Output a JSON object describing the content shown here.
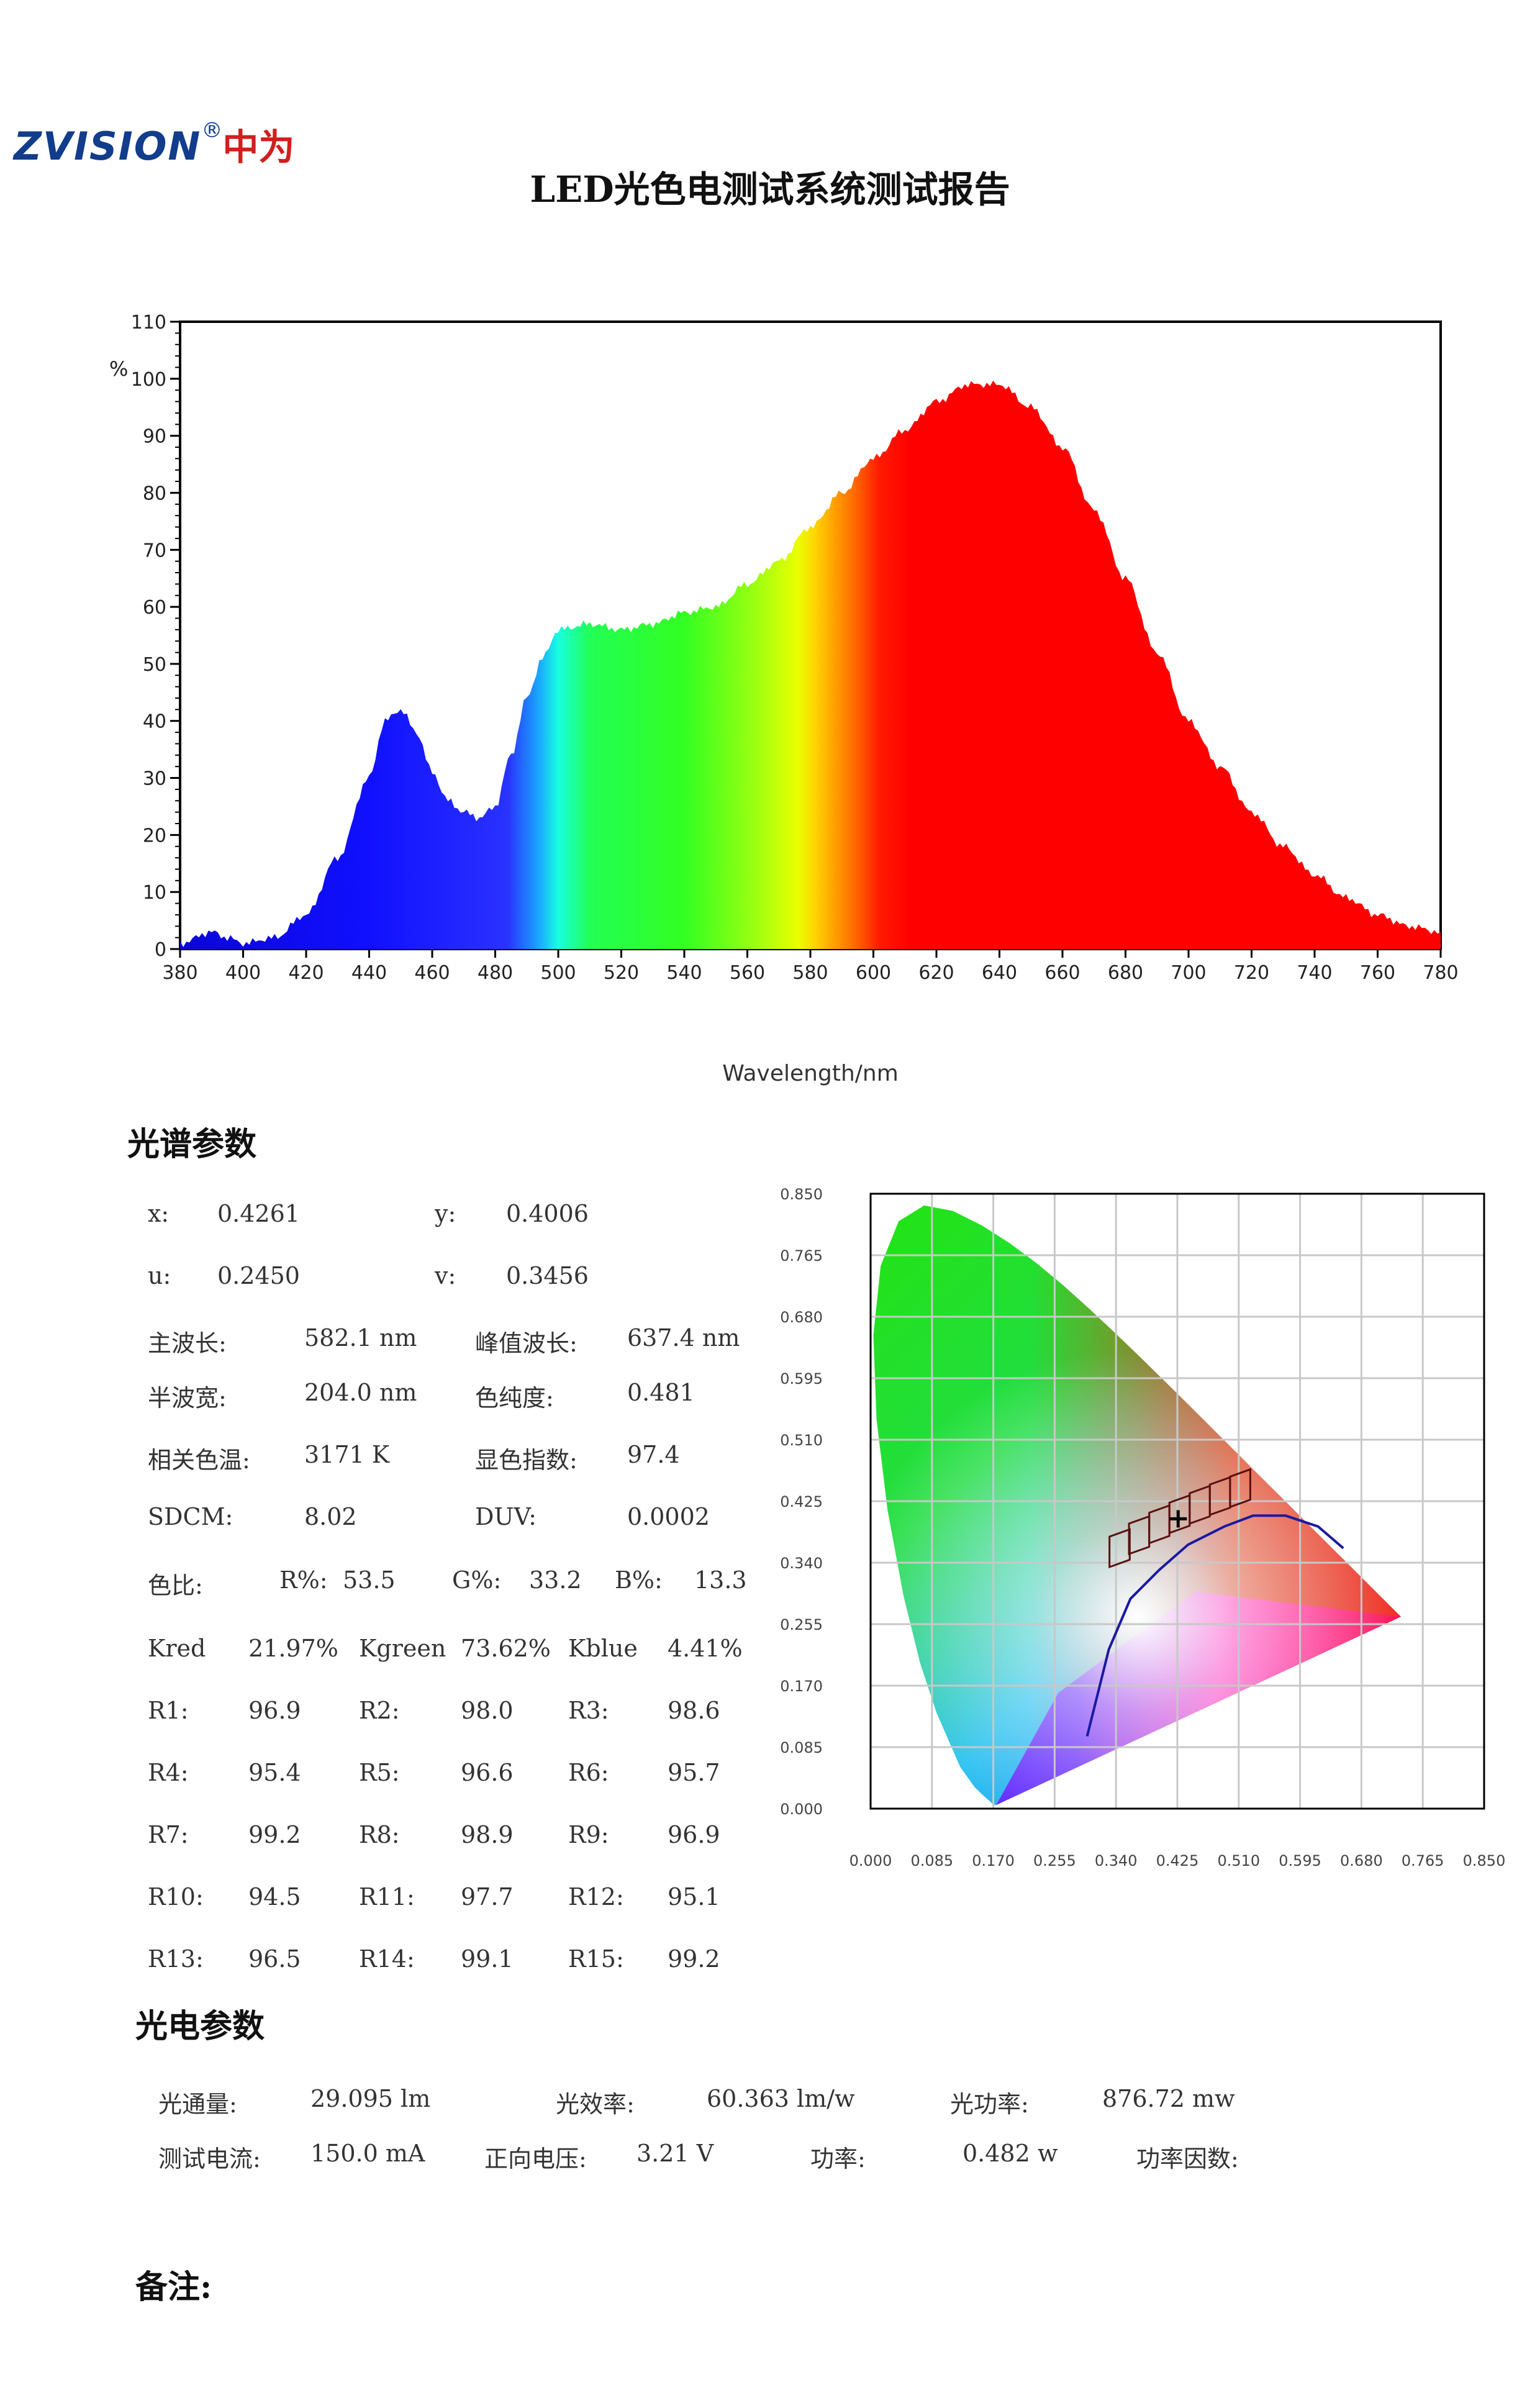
{
  "header": {
    "brand": "ZVISION",
    "reg_mark": "®",
    "brand_cn": "中为",
    "title": "LED光色电测试系统测试报告"
  },
  "chart_data": {
    "type": "area",
    "title": "",
    "xlabel": "Wavelength/nm",
    "ylabel": "%",
    "xlim": [
      380,
      780
    ],
    "ylim": [
      0,
      110
    ],
    "x_ticks": [
      "380",
      "400",
      "420",
      "440",
      "460",
      "480",
      "500",
      "520",
      "540",
      "560",
      "580",
      "600",
      "620",
      "640",
      "660",
      "680",
      "700",
      "720",
      "740",
      "760",
      "780"
    ],
    "y_ticks": [
      "0",
      "10",
      "20",
      "30",
      "40",
      "50",
      "60",
      "70",
      "80",
      "90",
      "100",
      "110"
    ],
    "x": [
      380,
      390,
      395,
      400,
      410,
      420,
      430,
      440,
      445,
      450,
      455,
      460,
      465,
      470,
      475,
      480,
      485,
      490,
      495,
      500,
      510,
      520,
      530,
      540,
      550,
      560,
      570,
      580,
      590,
      600,
      610,
      620,
      630,
      640,
      650,
      660,
      670,
      680,
      690,
      700,
      710,
      720,
      730,
      740,
      750,
      760,
      770,
      780
    ],
    "values": [
      1,
      3,
      2,
      1,
      2,
      6,
      16,
      30,
      40,
      42,
      38,
      31,
      26,
      24,
      23,
      25,
      34,
      44,
      51,
      56,
      57,
      56,
      57,
      59,
      60,
      64,
      68,
      74,
      80,
      86,
      91,
      96,
      99,
      99,
      95,
      88,
      77,
      65,
      52,
      40,
      32,
      24,
      18,
      13,
      9,
      6,
      4,
      3
    ]
  },
  "spectral": {
    "heading": "光谱参数",
    "rows": [
      [
        "x:",
        "0.4261",
        "y:",
        "0.4006"
      ],
      [
        "u:",
        "0.2450",
        "v:",
        "0.3456"
      ],
      [
        "主波长:",
        "582.1 nm",
        "峰值波长:",
        "637.4 nm"
      ],
      [
        "半波宽:",
        "204.0 nm",
        "色纯度:",
        "0.481"
      ],
      [
        "相关色温:",
        "3171 K",
        "显色指数:",
        "97.4"
      ],
      [
        "SDCM:",
        "8.02",
        "DUV:",
        "0.0002"
      ]
    ],
    "ratio": {
      "label": "色比:",
      "r_label": "R%:",
      "r": "53.5",
      "g_label": "G%:",
      "g": "33.2",
      "b_label": "B%:",
      "b": "13.3"
    },
    "k_row": [
      "Kred",
      "21.97%",
      "Kgreen",
      "73.62%",
      "Kblue",
      "4.41%"
    ],
    "r_values": [
      [
        "R1:",
        "96.9",
        "R2:",
        "98.0",
        "R3:",
        "98.6"
      ],
      [
        "R4:",
        "95.4",
        "R5:",
        "96.6",
        "R6:",
        "95.7"
      ],
      [
        "R7:",
        "99.2",
        "R8:",
        "98.9",
        "R9:",
        "96.9"
      ],
      [
        "R10:",
        "94.5",
        "R11:",
        "97.7",
        "R12:",
        "95.1"
      ],
      [
        "R13:",
        "96.5",
        "R14:",
        "99.1",
        "R15:",
        "99.2"
      ]
    ]
  },
  "cie": {
    "y_ticks": [
      "0.850",
      "0.765",
      "0.680",
      "0.595",
      "0.510",
      "0.425",
      "0.340",
      "0.255",
      "0.170",
      "0.085",
      "0.000"
    ],
    "x_ticks": [
      "0.000",
      "0.085",
      "0.170",
      "0.255",
      "0.340",
      "0.425",
      "0.510",
      "0.595",
      "0.680",
      "0.765",
      "0.850"
    ],
    "point": [
      0.4261,
      0.4006
    ]
  },
  "photoelectric": {
    "heading": "光电参数",
    "row1": [
      "光通量:",
      "29.095 lm",
      "光效率:",
      "60.363 lm/w",
      "光功率:",
      "876.72 mw"
    ],
    "row2": [
      "测试电流:",
      "150.0 mA",
      "正向电压:",
      "3.21 V",
      "功率:",
      "0.482 w",
      "功率因数:"
    ]
  },
  "remarks": {
    "label": "备注:"
  }
}
